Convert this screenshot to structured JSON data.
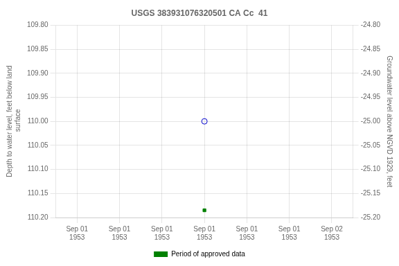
{
  "chart_data": {
    "type": "scatter",
    "title": "USGS 383931076320501 CA Cc  41",
    "categories": [
      "Sep 01\n1953",
      "Sep 01\n1953",
      "Sep 01\n1953",
      "Sep 01\n1953",
      "Sep 01\n1953",
      "Sep 01\n1953",
      "Sep 02\n1953"
    ],
    "series": [
      {
        "color": "#0000cc",
        "marker": "circle",
        "values": [
          null,
          null,
          null,
          110.0,
          null,
          null,
          null
        ]
      },
      {
        "name": "Period of approved data",
        "color": "#008000",
        "marker": "square",
        "values": [
          null,
          null,
          null,
          110.185,
          null,
          null,
          null
        ]
      }
    ],
    "ylabel": "Depth to water level, feet below land\n surface",
    "y2label": "Groundwater level above NGVD 1929, feet",
    "ylim": [
      110.2,
      109.8
    ],
    "yticks": [
      {
        "value": 109.8,
        "label": "109.80"
      },
      109.85,
      {
        "value": 109.9,
        "label": "109.90"
      },
      109.95,
      {
        "value": 110.0,
        "label": "110.00"
      },
      110.05,
      {
        "value": 110.1,
        "label": "110.10"
      },
      110.15,
      {
        "value": 110.2,
        "label": "110.20"
      }
    ],
    "y2lim": [
      -25.2,
      -24.8
    ],
    "y2ticks": [
      {
        "value": -24.8,
        "label": "-24.80"
      },
      -24.85,
      {
        "value": -24.9,
        "label": "-24.90"
      },
      -24.95,
      {
        "value": -25.0,
        "label": "-25.00"
      },
      -25.05,
      {
        "value": -25.1,
        "label": "-25.10"
      },
      -25.15,
      {
        "value": -25.2,
        "label": "-25.20"
      }
    ],
    "grid": true,
    "legend": "bottom"
  }
}
